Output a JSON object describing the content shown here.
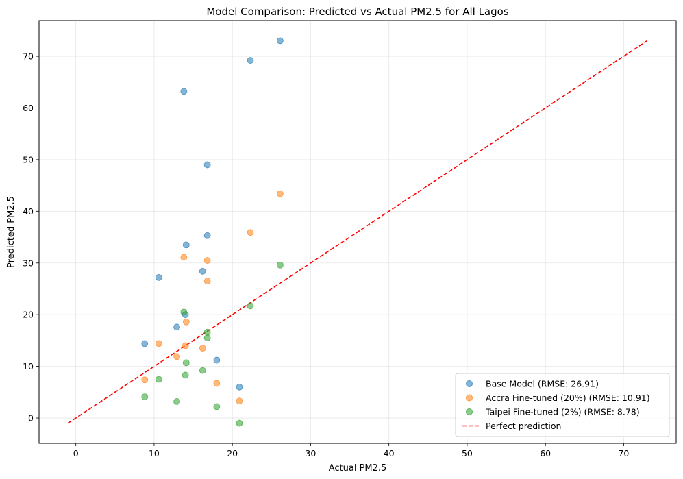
{
  "chart_data": {
    "type": "scatter",
    "title": "Model Comparison: Predicted vs Actual PM2.5 for All Lagos",
    "xlabel": "Actual PM2.5",
    "ylabel": "Predicted PM2.5",
    "xlim": [
      -4.7,
      76.7
    ],
    "ylim": [
      -4.9,
      76.9
    ],
    "xticks": [
      0,
      10,
      20,
      30,
      40,
      50,
      60,
      70
    ],
    "yticks": [
      0,
      10,
      20,
      30,
      40,
      50,
      60,
      70
    ],
    "grid": true,
    "legend_position": "bottom-right",
    "series": [
      {
        "name": "Base Model (RMSE: 26.91)",
        "color": "#1f77b4",
        "x": [
          26.1,
          22.3,
          13.8,
          16.8,
          14.1,
          16.8,
          10.6,
          16.2,
          14.0,
          12.9,
          8.8,
          18.0,
          20.9
        ],
        "y": [
          73.0,
          69.2,
          63.2,
          49.0,
          33.5,
          35.3,
          27.2,
          28.4,
          20.0,
          17.6,
          14.4,
          11.2,
          6.0
        ]
      },
      {
        "name": "Accra Fine-tuned (20%) (RMSE: 10.91)",
        "color": "#ff7f0e",
        "x": [
          26.1,
          22.3,
          13.8,
          16.8,
          16.8,
          14.1,
          10.6,
          14.0,
          16.2,
          12.9,
          8.8,
          18.0,
          20.9
        ],
        "y": [
          43.4,
          35.9,
          31.1,
          30.5,
          26.5,
          18.6,
          14.4,
          14.0,
          13.5,
          11.9,
          7.4,
          6.7,
          3.3
        ]
      },
      {
        "name": "Taipei Fine-tuned (2%) (RMSE: 8.78)",
        "color": "#2ca02c",
        "x": [
          26.1,
          22.3,
          13.8,
          16.8,
          16.8,
          14.1,
          16.2,
          14.0,
          10.6,
          8.8,
          12.9,
          18.0,
          20.9
        ],
        "y": [
          29.6,
          21.7,
          20.5,
          16.6,
          15.5,
          10.7,
          9.2,
          8.3,
          7.5,
          4.1,
          3.2,
          2.2,
          -1.0
        ]
      }
    ],
    "reference_line": {
      "name": "Perfect prediction",
      "color": "#ff0000",
      "style": "dashed",
      "x": [
        -1.0,
        73.0
      ],
      "y": [
        -1.0,
        73.0
      ]
    }
  }
}
